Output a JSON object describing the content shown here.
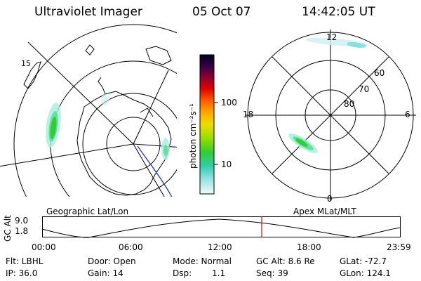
{
  "header": {
    "title": "Ultraviolet Imager",
    "date": "05 Oct 07",
    "time": "14:42:05 UT"
  },
  "geographic_panel": {
    "label": "Geographic Lat/Lon",
    "lon_label": "15"
  },
  "color_bar": {
    "unit": "photon cm⁻²s⁻¹",
    "tick_labels": [
      "100",
      "10"
    ]
  },
  "apex_panel": {
    "label": "Apex MLat/MLT",
    "mlt_labels": {
      "top": "12",
      "left": "18",
      "right": "6",
      "bottom": "0"
    },
    "mlat_labels": [
      "60",
      "70",
      "80"
    ]
  },
  "timeline": {
    "y_axis_label": "GC Alt",
    "y_max": "9.0",
    "y_min": "1.8",
    "ticks": [
      "00:00",
      "06:00",
      "12:00",
      "18:00",
      "23:59"
    ],
    "marker_time_fraction": 0.6125
  },
  "info": {
    "filter": "Flt: LBHL",
    "door": "Door: Open",
    "mode": "Mode: Normal",
    "gc_alt": "GC Alt: 8.6 Re",
    "glat": "GLat: -72.7",
    "ip": "IP: 36.0",
    "gain": "Gain: 14",
    "dsp_label": "Dsp:",
    "dsp_value": "1.1",
    "seq": "Seq: 39",
    "glon": "GLon: 124.1"
  },
  "colors": {
    "aurora_core": "#33cc33",
    "aurora_mid": "#66e0a0",
    "aurora_edge": "#aaeedd",
    "marker": "#dd0000",
    "orbit_track": "#3344aa"
  }
}
